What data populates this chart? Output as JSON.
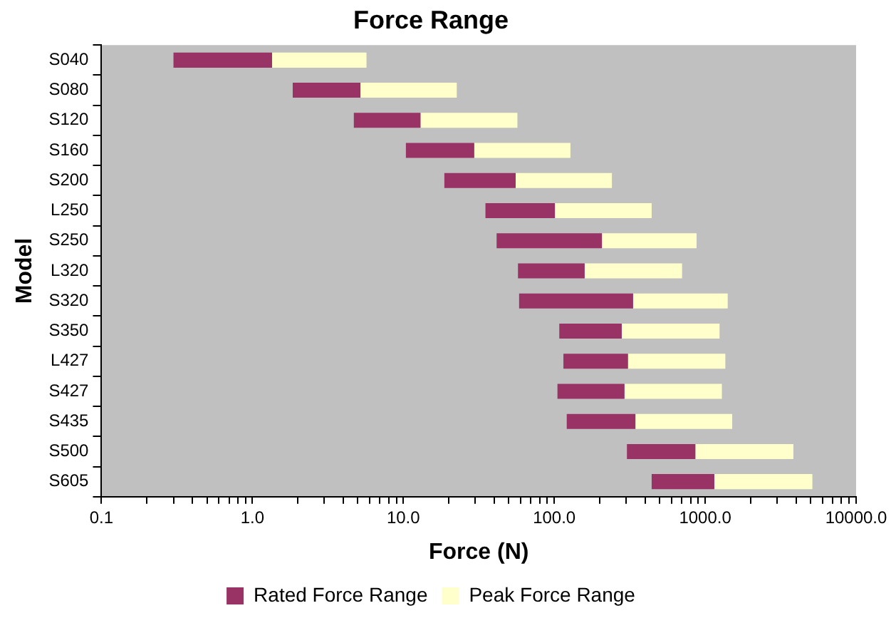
{
  "chart_data": {
    "type": "bar",
    "orientation": "horizontal",
    "log": "x",
    "title": "Force Range",
    "xlabel": "Force (N)",
    "ylabel": "Model",
    "categories": [
      "S040",
      "S080",
      "S120",
      "S160",
      "S200",
      "L250",
      "S250",
      "L320",
      "S320",
      "S350",
      "L427",
      "S427",
      "S435",
      "S500",
      "S605"
    ],
    "series": [
      {
        "name": "Rated Force Range",
        "color": "#993366",
        "base": [
          0.3,
          1.85,
          4.7,
          10.4,
          18.7,
          35,
          41.5,
          57.5,
          58.5,
          108,
          115,
          105,
          121,
          303,
          442
        ],
        "values": [
          1.05,
          3.35,
          8.3,
          19.1,
          36.8,
          66,
          165.5,
          101.5,
          274.5,
          172,
          193,
          187,
          224,
          558,
          708
        ]
      },
      {
        "name": "Peak Force Range",
        "color": "#ffffcc",
        "base": [
          1.35,
          5.2,
          13,
          29.5,
          55.5,
          101,
          207,
          159,
          333,
          280,
          308,
          292,
          345,
          861,
          1150
        ],
        "values": [
          4.35,
          17.4,
          44,
          98.5,
          185.5,
          341,
          670,
          544,
          1077,
          965,
          1052,
          998,
          1165,
          2979,
          3980
        ]
      }
    ],
    "xlim": [
      0.1,
      10000
    ],
    "xticks": [
      {
        "value": 0.1,
        "label": "0.1"
      },
      {
        "value": 0.2,
        "label": null
      },
      {
        "value": 0.3,
        "label": null
      },
      {
        "value": 0.4,
        "label": null
      },
      {
        "value": 0.5,
        "label": null
      },
      {
        "value": 0.6,
        "label": null
      },
      {
        "value": 0.7,
        "label": null
      },
      {
        "value": 0.8,
        "label": null
      },
      {
        "value": 0.9,
        "label": null
      },
      {
        "value": 1,
        "label": "1.0"
      },
      {
        "value": 2,
        "label": null
      },
      {
        "value": 3,
        "label": null
      },
      {
        "value": 4,
        "label": null
      },
      {
        "value": 5,
        "label": null
      },
      {
        "value": 6,
        "label": null
      },
      {
        "value": 7,
        "label": null
      },
      {
        "value": 8,
        "label": null
      },
      {
        "value": 9,
        "label": null
      },
      {
        "value": 10,
        "label": "10.0"
      },
      {
        "value": 20,
        "label": null
      },
      {
        "value": 30,
        "label": null
      },
      {
        "value": 40,
        "label": null
      },
      {
        "value": 50,
        "label": null
      },
      {
        "value": 60,
        "label": null
      },
      {
        "value": 70,
        "label": null
      },
      {
        "value": 80,
        "label": null
      },
      {
        "value": 90,
        "label": null
      },
      {
        "value": 100,
        "label": "100.0"
      },
      {
        "value": 200,
        "label": null
      },
      {
        "value": 300,
        "label": null
      },
      {
        "value": 400,
        "label": null
      },
      {
        "value": 500,
        "label": null
      },
      {
        "value": 600,
        "label": null
      },
      {
        "value": 700,
        "label": null
      },
      {
        "value": 800,
        "label": null
      },
      {
        "value": 900,
        "label": null
      },
      {
        "value": 1000,
        "label": "1000.0"
      },
      {
        "value": 2000,
        "label": null
      },
      {
        "value": 3000,
        "label": null
      },
      {
        "value": 4000,
        "label": null
      },
      {
        "value": 5000,
        "label": null
      },
      {
        "value": 6000,
        "label": null
      },
      {
        "value": 7000,
        "label": null
      },
      {
        "value": 8000,
        "label": null
      },
      {
        "value": 9000,
        "label": null
      },
      {
        "value": 10000,
        "label": "10000.0"
      }
    ],
    "grid": false,
    "legend": "bottom"
  }
}
